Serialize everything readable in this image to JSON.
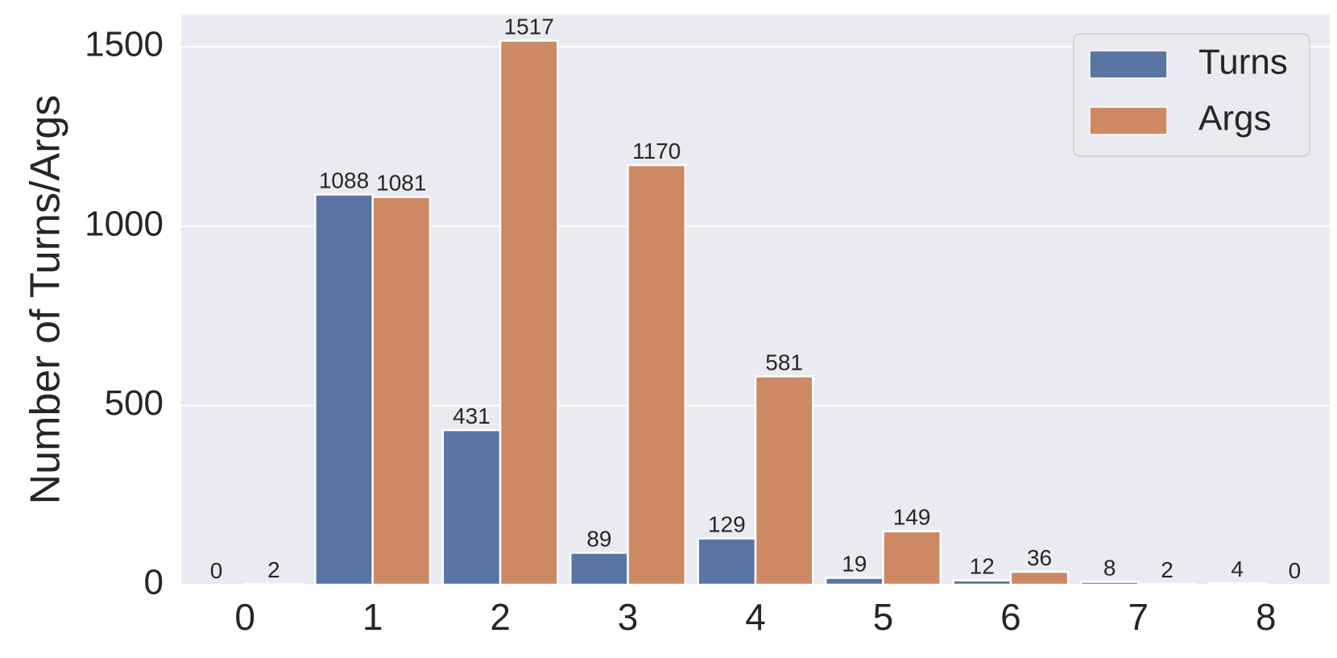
{
  "chart_data": {
    "type": "bar",
    "title": "",
    "xlabel": "",
    "ylabel": "Number of Turns/Args",
    "categories": [
      "0",
      "1",
      "2",
      "3",
      "4",
      "5",
      "6",
      "7",
      "8"
    ],
    "series": [
      {
        "name": "Turns",
        "color": "#5975a4",
        "values": [
          0,
          1088,
          431,
          89,
          129,
          19,
          12,
          8,
          4
        ]
      },
      {
        "name": "Args",
        "color": "#cc8963",
        "values": [
          2,
          1081,
          1517,
          1170,
          581,
          149,
          36,
          2,
          0
        ]
      }
    ],
    "ylim": [
      0,
      1590
    ],
    "yticks": [
      0,
      500,
      1000,
      1500
    ],
    "grid": true,
    "legend_position": "top-right",
    "background_color": "#eaeaf2",
    "grid_color": "#ffffff"
  }
}
